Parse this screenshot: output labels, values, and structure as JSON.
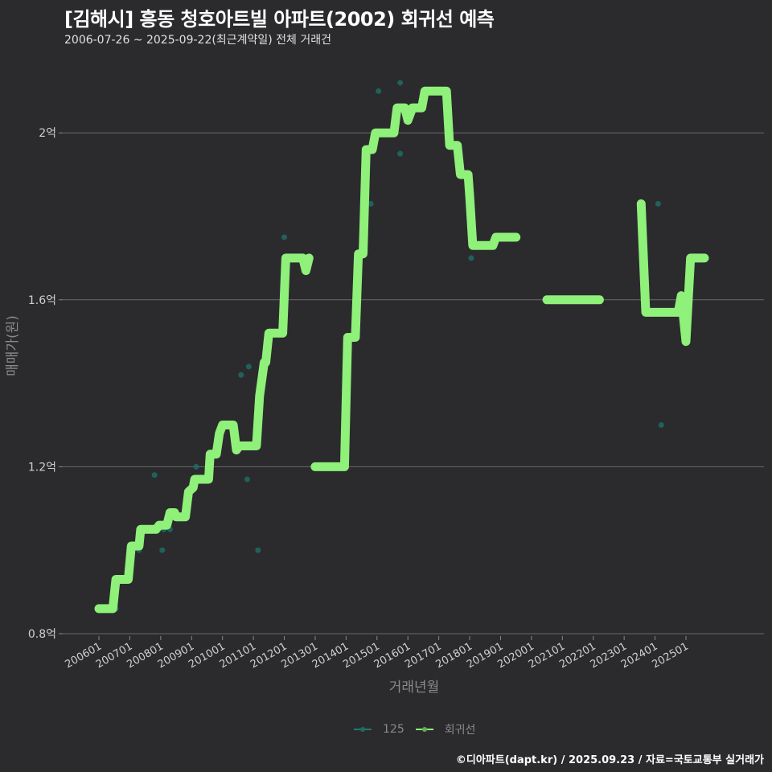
{
  "header": {
    "title": "[김해시] 흥동 청호아트빌 아파트(2002) 회귀선 예측",
    "subtitle": "2006-07-26 ~ 2025-09-22(최근계약일) 전체 거래건"
  },
  "legend": {
    "items": [
      {
        "label": "125",
        "color": "#1f7a72"
      },
      {
        "label": "회귀선",
        "color": "#8ff07a"
      }
    ]
  },
  "credit": "©디아파트(dapt.kr) / 2025.09.23 / 자료=국토교통부 실거래가",
  "colors": {
    "background": "#2b2b2d",
    "grid": "#6a6a6a",
    "regression": "#8ff07a",
    "scatter": "#1f6b64"
  },
  "chart_data": {
    "type": "line",
    "title": "[김해시] 흥동 청호아트빌 아파트(2002) 회귀선 예측",
    "subtitle": "2006-07-26 ~ 2025-09-22(최근계약일) 전체 거래건",
    "xlabel": "거래년월",
    "ylabel": "매매가(원)",
    "x_ticks": [
      "200601",
      "200701",
      "200801",
      "200901",
      "201001",
      "201101",
      "201201",
      "201301",
      "201401",
      "201501",
      "201601",
      "201701",
      "201801",
      "201901",
      "202001",
      "202101",
      "202201",
      "202301",
      "202401",
      "202501"
    ],
    "y_ticks": [
      {
        "value": 0.8,
        "label": "0.8억"
      },
      {
        "value": 1.2,
        "label": "1.2억"
      },
      {
        "value": 1.6,
        "label": "1.6억"
      },
      {
        "value": 2.0,
        "label": "2억"
      }
    ],
    "ylim": [
      0.8,
      2.2
    ],
    "xlim": [
      2005.6,
      2026.4
    ],
    "grid": true,
    "legend_position": "bottom",
    "series": [
      {
        "name": "회귀선",
        "type": "line",
        "segments": [
          [
            [
              2006.0,
              0.86
            ],
            [
              2006.45,
              0.86
            ],
            [
              2006.55,
              0.93
            ],
            [
              2006.95,
              0.93
            ],
            [
              2007.05,
              1.01
            ],
            [
              2007.3,
              1.01
            ],
            [
              2007.35,
              1.05
            ],
            [
              2007.85,
              1.05
            ],
            [
              2007.95,
              1.06
            ],
            [
              2008.2,
              1.06
            ],
            [
              2008.3,
              1.09
            ],
            [
              2008.45,
              1.09
            ],
            [
              2008.5,
              1.08
            ],
            [
              2008.8,
              1.08
            ],
            [
              2008.9,
              1.14
            ],
            [
              2009.05,
              1.15
            ],
            [
              2009.1,
              1.17
            ],
            [
              2009.55,
              1.17
            ],
            [
              2009.6,
              1.23
            ],
            [
              2009.8,
              1.23
            ],
            [
              2009.9,
              1.28
            ],
            [
              2010.0,
              1.3
            ],
            [
              2010.35,
              1.3
            ],
            [
              2010.45,
              1.24
            ],
            [
              2010.55,
              1.25
            ],
            [
              2011.1,
              1.25
            ],
            [
              2011.2,
              1.37
            ],
            [
              2011.35,
              1.45
            ],
            [
              2011.4,
              1.45
            ],
            [
              2011.5,
              1.52
            ],
            [
              2011.95,
              1.52
            ],
            [
              2012.05,
              1.7
            ],
            [
              2012.6,
              1.7
            ],
            [
              2012.7,
              1.67
            ],
            [
              2012.8,
              1.7
            ]
          ],
          [
            [
              2013.0,
              1.2
            ],
            [
              2013.95,
              1.2
            ],
            [
              2014.05,
              1.51
            ],
            [
              2014.3,
              1.51
            ],
            [
              2014.4,
              1.71
            ],
            [
              2014.55,
              1.71
            ],
            [
              2014.65,
              1.96
            ],
            [
              2014.85,
              1.96
            ],
            [
              2014.95,
              2.0
            ],
            [
              2015.55,
              2.0
            ],
            [
              2015.65,
              2.06
            ],
            [
              2015.9,
              2.06
            ],
            [
              2016.0,
              2.03
            ],
            [
              2016.15,
              2.06
            ],
            [
              2016.45,
              2.06
            ],
            [
              2016.55,
              2.1
            ],
            [
              2017.25,
              2.1
            ],
            [
              2017.35,
              1.97
            ],
            [
              2017.6,
              1.97
            ],
            [
              2017.7,
              1.9
            ],
            [
              2017.95,
              1.9
            ],
            [
              2018.0,
              1.85
            ],
            [
              2018.1,
              1.73
            ],
            [
              2018.75,
              1.73
            ],
            [
              2018.85,
              1.75
            ],
            [
              2019.5,
              1.75
            ]
          ]
        ],
        "segment_2": [
          [
            2020.5,
            1.6
          ],
          [
            2022.2,
            1.6
          ]
        ],
        "segment_3": [
          [
            2023.55,
            1.83
          ],
          [
            2023.7,
            1.57
          ],
          [
            2024.75,
            1.57
          ],
          [
            2024.85,
            1.61
          ],
          [
            2025.0,
            1.5
          ],
          [
            2025.15,
            1.7
          ],
          [
            2025.6,
            1.7
          ]
        ],
        "color": "#8ff07a"
      },
      {
        "name": "125",
        "type": "scatter",
        "points": [
          [
            2006.55,
            0.86
          ],
          [
            2007.3,
            1.0
          ],
          [
            2007.8,
            1.18
          ],
          [
            2008.05,
            1.0
          ],
          [
            2008.1,
            1.05
          ],
          [
            2008.3,
            1.05
          ],
          [
            2008.95,
            1.13
          ],
          [
            2009.15,
            1.2
          ],
          [
            2010.6,
            1.42
          ],
          [
            2010.85,
            1.44
          ],
          [
            2010.8,
            1.17
          ],
          [
            2011.15,
            1.0
          ],
          [
            2012.0,
            1.75
          ],
          [
            2015.05,
            2.1
          ],
          [
            2015.75,
            2.12
          ],
          [
            2015.75,
            1.95
          ],
          [
            2014.8,
            1.83
          ],
          [
            2018.05,
            1.7
          ],
          [
            2018.75,
            1.74
          ],
          [
            2024.1,
            1.83
          ],
          [
            2024.2,
            1.3
          ]
        ],
        "color": "#1f6b64"
      }
    ]
  }
}
